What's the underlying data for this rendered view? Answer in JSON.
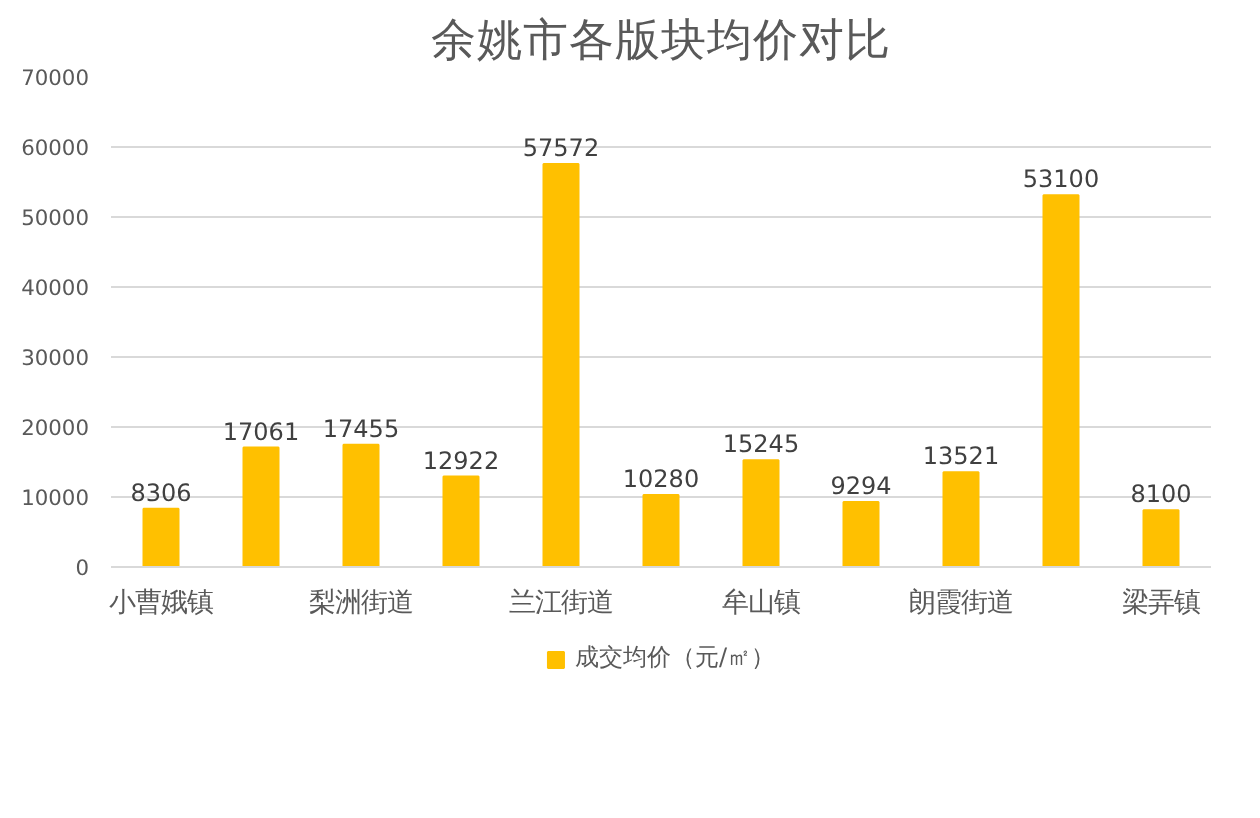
{
  "chart_data": {
    "type": "bar",
    "title": "余姚市各版块均价对比",
    "categories": [
      "小曹娥镇",
      null,
      "梨洲街道",
      null,
      "兰江街道",
      null,
      "牟山镇",
      null,
      "朗霞街道",
      null,
      "梁弄镇"
    ],
    "series": [
      {
        "name": "成交均价（元/㎡）",
        "color": "#ffc000",
        "values": [
          8306,
          17061,
          17455,
          12922,
          57572,
          10280,
          15245,
          9294,
          13521,
          53100,
          8100
        ]
      }
    ],
    "ylim": [
      0,
      70000
    ],
    "yticks": [
      0,
      10000,
      20000,
      30000,
      40000,
      50000,
      60000,
      70000
    ],
    "grid": "y",
    "legend": "bottom",
    "data_labels": true
  }
}
